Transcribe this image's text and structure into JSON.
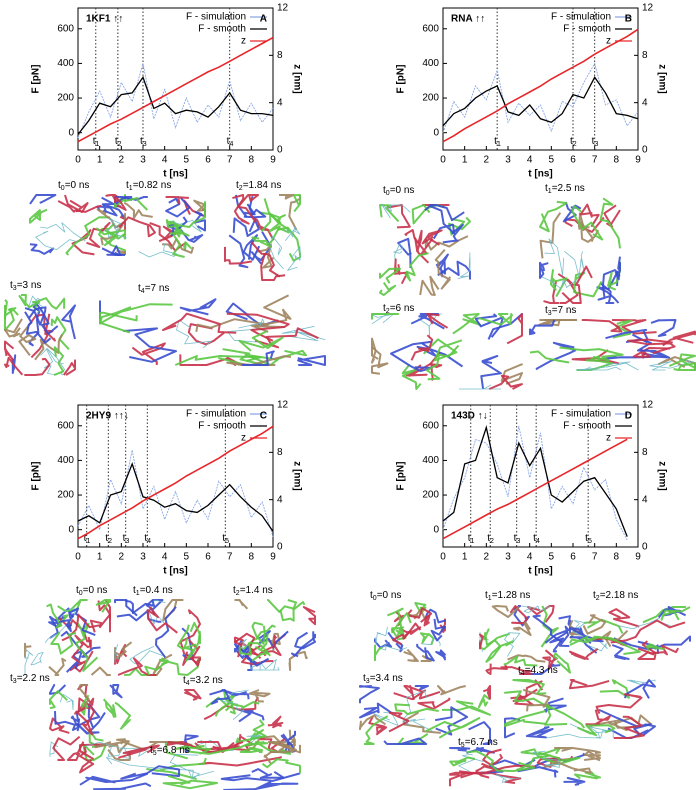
{
  "chart_data": [
    {
      "type": "line",
      "panel": "A",
      "title": "1KF1 ↑↑",
      "xlabel": "t [ns]",
      "ylabel": "F [pN]",
      "y2label": "z [nm]",
      "x": [
        0,
        0.5,
        1,
        1.5,
        2,
        2.5,
        3,
        3.5,
        4,
        4.5,
        5,
        5.5,
        6,
        6.5,
        7,
        7.5,
        8,
        8.5,
        9
      ],
      "series": [
        {
          "name": "F - simulation",
          "color": "#8aa8e8",
          "values": [
            -30,
            120,
            240,
            90,
            290,
            180,
            400,
            80,
            250,
            30,
            200,
            60,
            160,
            90,
            300,
            70,
            170,
            60,
            140
          ]
        },
        {
          "name": "F - smooth",
          "color": "#000000",
          "values": [
            -10,
            70,
            170,
            150,
            220,
            230,
            320,
            140,
            170,
            110,
            130,
            120,
            90,
            150,
            230,
            130,
            110,
            110,
            100
          ]
        },
        {
          "name": "z",
          "color": "#e8262a",
          "axis": "y2",
          "values": [
            0.7,
            1.2,
            1.7,
            2.2,
            2.6,
            3.1,
            3.6,
            4.1,
            4.6,
            5.1,
            5.6,
            6.1,
            6.6,
            7.0,
            7.5,
            8.0,
            8.5,
            9.0,
            9.5
          ]
        }
      ],
      "events": [
        {
          "value": 0.82,
          "var": "t",
          "index": "1"
        },
        {
          "value": 1.84,
          "var": "t",
          "index": "2"
        },
        {
          "value": 3,
          "var": "t",
          "index": "3"
        },
        {
          "value": 7,
          "var": "t",
          "index": "4"
        }
      ],
      "xlim": [
        0,
        9
      ],
      "xticks": [
        0,
        1,
        2,
        3,
        4,
        5,
        6,
        7,
        8,
        9
      ],
      "ylim": [
        -100,
        720
      ],
      "yticks": [
        0,
        200,
        400,
        600
      ],
      "y2lim": [
        0,
        12
      ],
      "y2ticks": [
        0,
        4,
        8,
        12
      ]
    },
    {
      "type": "line",
      "panel": "B",
      "title": "RNA ↑↑",
      "xlabel": "t [ns]",
      "ylabel": "F [pN]",
      "y2label": "z [nm]",
      "x": [
        0,
        0.5,
        1,
        1.5,
        2,
        2.5,
        3,
        3.5,
        4,
        4.5,
        5,
        5.5,
        6,
        6.5,
        7,
        7.5,
        8,
        8.5,
        9
      ],
      "series": [
        {
          "name": "F - simulation",
          "color": "#8aa8e8",
          "values": [
            0,
            180,
            90,
            270,
            190,
            360,
            60,
            170,
            100,
            160,
            10,
            180,
            150,
            290,
            400,
            160,
            190,
            40,
            120
          ]
        },
        {
          "name": "F - smooth",
          "color": "#000000",
          "values": [
            40,
            110,
            140,
            200,
            240,
            270,
            120,
            100,
            160,
            80,
            60,
            110,
            220,
            200,
            320,
            230,
            110,
            100,
            80
          ]
        },
        {
          "name": "z",
          "color": "#e8262a",
          "axis": "y2",
          "values": [
            0.7,
            1.2,
            1.8,
            2.3,
            2.8,
            3.3,
            3.9,
            4.4,
            4.9,
            5.4,
            6.0,
            6.5,
            7.0,
            7.5,
            8.1,
            8.6,
            9.1,
            9.6,
            10.2
          ]
        }
      ],
      "events": [
        {
          "value": 2.5,
          "var": "t",
          "index": "1"
        },
        {
          "value": 6,
          "var": "t",
          "index": "2"
        },
        {
          "value": 7,
          "var": "t",
          "index": "3"
        }
      ],
      "xlim": [
        0,
        9
      ],
      "xticks": [
        0,
        1,
        2,
        3,
        4,
        5,
        6,
        7,
        8,
        9
      ],
      "ylim": [
        -100,
        720
      ],
      "yticks": [
        0,
        200,
        400,
        600
      ],
      "y2lim": [
        0,
        12
      ],
      "y2ticks": [
        0,
        4,
        8,
        12
      ]
    },
    {
      "type": "line",
      "panel": "C",
      "title": "2HY9 ↑↑↓",
      "xlabel": "t [ns]",
      "ylabel": "F [pN]",
      "y2label": "z [nm]",
      "x": [
        0,
        0.5,
        1,
        1.5,
        2,
        2.5,
        3,
        3.5,
        4,
        4.5,
        5,
        5.5,
        6,
        6.5,
        7,
        7.5,
        8,
        8.5,
        9
      ],
      "series": [
        {
          "name": "F - simulation",
          "color": "#8aa8e8",
          "values": [
            20,
            140,
            0,
            290,
            150,
            460,
            120,
            250,
            60,
            220,
            40,
            170,
            60,
            280,
            190,
            260,
            70,
            160,
            -40
          ]
        },
        {
          "name": "F - smooth",
          "color": "#000000",
          "values": [
            50,
            80,
            40,
            200,
            220,
            380,
            190,
            170,
            130,
            150,
            110,
            100,
            140,
            200,
            260,
            190,
            130,
            80,
            -10
          ]
        },
        {
          "name": "z",
          "color": "#e8262a",
          "axis": "y2",
          "values": [
            0.7,
            1.2,
            1.8,
            2.3,
            2.8,
            3.3,
            3.9,
            4.4,
            4.9,
            5.4,
            6.0,
            6.5,
            7.0,
            7.5,
            8.1,
            8.6,
            9.1,
            9.6,
            10.2
          ]
        }
      ],
      "events": [
        {
          "value": 0.4,
          "var": "t",
          "index": "1"
        },
        {
          "value": 1.4,
          "var": "t",
          "index": "2"
        },
        {
          "value": 2.2,
          "var": "t",
          "index": "3"
        },
        {
          "value": 3.2,
          "var": "t",
          "index": "4"
        },
        {
          "value": 6.8,
          "var": "t",
          "index": "5"
        }
      ],
      "xlim": [
        0,
        9
      ],
      "xticks": [
        0,
        1,
        2,
        3,
        4,
        5,
        6,
        7,
        8,
        9
      ],
      "ylim": [
        -100,
        720
      ],
      "yticks": [
        0,
        200,
        400,
        600
      ],
      "y2lim": [
        0,
        12
      ],
      "y2ticks": [
        0,
        4,
        8,
        12
      ]
    },
    {
      "type": "line",
      "panel": "D",
      "title": "143D ↑↓",
      "xlabel": "t [ns]",
      "ylabel": "F [pN]",
      "y2label": "z [nm]",
      "x": [
        0,
        0.5,
        1,
        1.5,
        2,
        2.5,
        3,
        3.5,
        4,
        4.5,
        5,
        5.5,
        6,
        6.5,
        7,
        7.5,
        8,
        8.5
      ],
      "series": [
        {
          "name": "F - simulation",
          "color": "#8aa8e8",
          "values": [
            0,
            180,
            300,
            520,
            500,
            380,
            190,
            600,
            300,
            560,
            120,
            250,
            150,
            360,
            230,
            290,
            60,
            -60
          ]
        },
        {
          "name": "F - smooth",
          "color": "#000000",
          "values": [
            50,
            100,
            380,
            400,
            590,
            300,
            270,
            500,
            370,
            470,
            200,
            160,
            220,
            280,
            300,
            210,
            120,
            -40
          ]
        },
        {
          "name": "z",
          "color": "#e8262a",
          "axis": "y2",
          "values": [
            0.7,
            1.2,
            1.7,
            2.2,
            2.7,
            3.2,
            3.6,
            4.1,
            4.6,
            5.1,
            5.6,
            6.1,
            6.6,
            7.1,
            7.6,
            8.1,
            8.6,
            9.1
          ]
        }
      ],
      "events": [
        {
          "value": 1.28,
          "var": "t",
          "index": "1"
        },
        {
          "value": 2.18,
          "var": "t",
          "index": "2"
        },
        {
          "value": 3.4,
          "var": "t",
          "index": "3"
        },
        {
          "value": 4.3,
          "var": "t",
          "index": "4"
        },
        {
          "value": 6.7,
          "var": "t",
          "index": "5"
        }
      ],
      "xlim": [
        0,
        9
      ],
      "xticks": [
        0,
        1,
        2,
        3,
        4,
        5,
        6,
        7,
        8,
        9
      ],
      "ylim": [
        -100,
        720
      ],
      "yticks": [
        0,
        200,
        400,
        600
      ],
      "y2lim": [
        0,
        12
      ],
      "y2ticks": [
        0,
        4,
        8,
        12
      ]
    }
  ],
  "snapshots": [
    [
      {
        "var": "t",
        "index": "0",
        "time": "=0 ns"
      },
      {
        "var": "t",
        "index": "1",
        "time": "=0.82 ns"
      },
      {
        "var": "t",
        "index": "2",
        "time": "=1.84 ns"
      },
      {
        "var": "t",
        "index": "3",
        "time": "=3 ns"
      },
      {
        "var": "t",
        "index": "4",
        "time": "=7 ns"
      }
    ],
    [
      {
        "var": "t",
        "index": "0",
        "time": "=0 ns"
      },
      {
        "var": "t",
        "index": "1",
        "time": "=2.5 ns"
      },
      {
        "var": "t",
        "index": "2",
        "time": "=6 ns"
      },
      {
        "var": "t",
        "index": "3",
        "time": "=7 ns"
      }
    ],
    [
      {
        "var": "t",
        "index": "0",
        "time": "=0 ns"
      },
      {
        "var": "t",
        "index": "1",
        "time": "=0.4 ns"
      },
      {
        "var": "t",
        "index": "2",
        "time": "=1.4 ns"
      },
      {
        "var": "t",
        "index": "3",
        "time": "=2.2 ns"
      },
      {
        "var": "t",
        "index": "4",
        "time": "=3.2 ns"
      },
      {
        "var": "t",
        "index": "5",
        "time": "=6.8 ns"
      }
    ],
    [
      {
        "var": "t",
        "index": "0",
        "time": "=0 ns"
      },
      {
        "var": "t",
        "index": "1",
        "time": "=1.28 ns"
      },
      {
        "var": "t",
        "index": "2",
        "time": "=2.18 ns"
      },
      {
        "var": "t",
        "index": "3",
        "time": "=3.4 ns"
      },
      {
        "var": "t",
        "index": "4",
        "time": "=4.3 ns"
      },
      {
        "var": "t",
        "index": "5",
        "time": "=6.7 ns"
      }
    ]
  ]
}
